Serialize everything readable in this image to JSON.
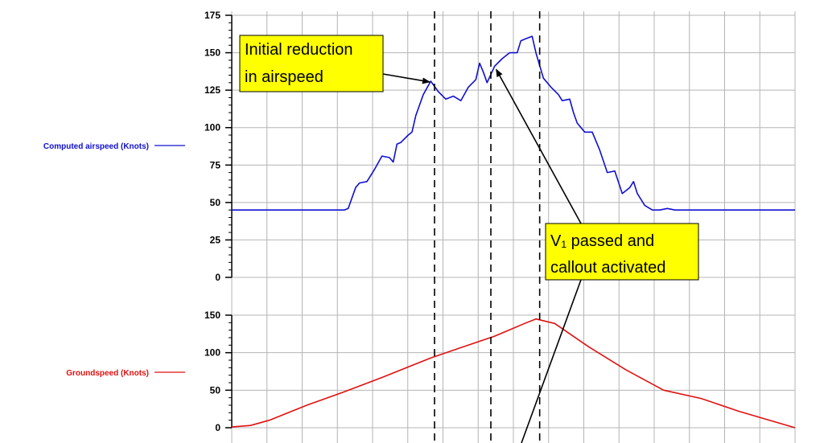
{
  "chart_data": {
    "type": "line",
    "panels": [
      {
        "id": "airspeed",
        "ylabel": "Computed airspeed (Knots)",
        "color": "#1010d0",
        "ylim": [
          0,
          175
        ],
        "yticks": [
          0,
          25,
          50,
          75,
          100,
          125,
          150,
          175
        ],
        "series": [
          {
            "name": "Computed airspeed (Knots)",
            "x": [
              0,
              30,
              31,
              33,
              34,
              36,
              38,
              40,
              42,
              43,
              44,
              45,
              47,
              48,
              49,
              51,
              53,
              55,
              57,
              59,
              61,
              63,
              65,
              66,
              67,
              68,
              70,
              72,
              74,
              76,
              77,
              78,
              79,
              80,
              81,
              83,
              85,
              87,
              88,
              90,
              91,
              92,
              94,
              96,
              98,
              100,
              102,
              104,
              106,
              107,
              108,
              110,
              112,
              114,
              116,
              118,
              120,
              122,
              124,
              126,
              128,
              130,
              135,
              150
            ],
            "values": [
              45,
              45,
              46,
              60,
              63,
              64,
              72,
              81,
              80,
              77,
              89,
              90,
              95,
              97,
              108,
              122,
              131,
              124,
              119,
              121,
              118,
              127,
              132,
              143,
              137,
              130,
              141,
              146,
              150,
              150,
              158,
              159,
              160,
              161,
              150,
              133,
              127,
              122,
              118,
              119,
              110,
              103,
              97,
              97,
              85,
              70,
              71,
              56,
              60,
              64,
              56,
              48,
              45,
              45,
              46,
              45,
              45,
              45,
              45,
              45,
              45,
              45,
              45,
              45
            ]
          }
        ]
      },
      {
        "id": "groundspeed",
        "ylabel": "Groundspeed (Knots)",
        "color": "#e01010",
        "ylim": [
          0,
          150
        ],
        "yticks": [
          0,
          50,
          100,
          150
        ],
        "series": [
          {
            "name": "Groundspeed (Knots)",
            "x": [
              0,
              5,
              10,
              20,
              30,
              40,
              53,
              60,
              70,
              78,
              81,
              86,
              95,
              105,
              115,
              125,
              135,
              150
            ],
            "values": [
              1,
              3,
              10,
              30,
              48,
              67,
              93,
              105,
              122,
              139,
              145,
              139,
              108,
              77,
              50,
              39,
              22,
              0
            ]
          }
        ]
      }
    ],
    "xlim": [
      0,
      150
    ],
    "x_grid_count": 16,
    "grid": true,
    "vertical_markers": {
      "style": "dashed",
      "color": "#000000",
      "x": [
        54,
        69,
        82
      ]
    },
    "annotations": [
      {
        "lines": [
          "Initial reduction",
          "in airspeed"
        ],
        "background": "#ffff00",
        "points_to": {
          "panel": "airspeed",
          "x": 54,
          "y": 131
        }
      },
      {
        "lines": [
          "V₁ passed and",
          "callout activated"
        ],
        "background": "#ffff00",
        "points_to": {
          "panel": "airspeed",
          "x": 70,
          "y": 141
        }
      }
    ]
  }
}
